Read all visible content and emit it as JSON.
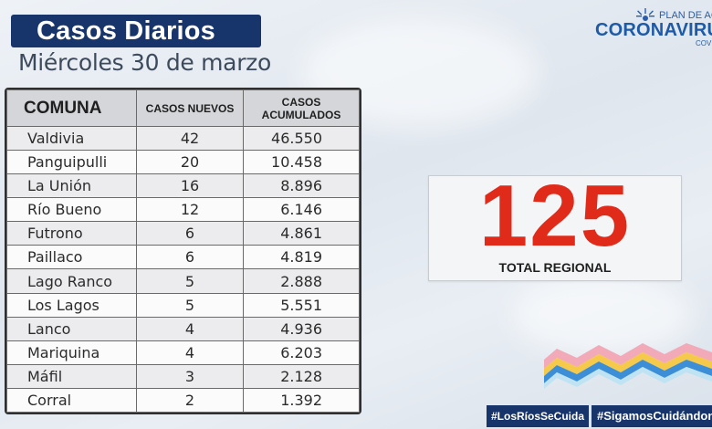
{
  "header": {
    "title": "Casos Diarios",
    "date": "Miércoles 30 de marzo"
  },
  "logo": {
    "plan": "PLAN DE ACC",
    "name": "CORONAVIRU",
    "sub": "COVI",
    "icon": "star-logo-icon"
  },
  "table": {
    "headers": {
      "comuna": "COMUNA",
      "nuevos": "CASOS NUEVOS",
      "acumulados_line1": "CASOS",
      "acumulados_line2": "ACUMULADOS"
    },
    "rows": [
      {
        "comuna": "Valdivia",
        "nuevos": "42",
        "acumulados": "46.550"
      },
      {
        "comuna": "Panguipulli",
        "nuevos": "20",
        "acumulados": "10.458"
      },
      {
        "comuna": "La Unión",
        "nuevos": "16",
        "acumulados": "8.896"
      },
      {
        "comuna": "Río Bueno",
        "nuevos": "12",
        "acumulados": "6.146"
      },
      {
        "comuna": "Futrono",
        "nuevos": "6",
        "acumulados": "4.861"
      },
      {
        "comuna": "Paillaco",
        "nuevos": "6",
        "acumulados": "4.819"
      },
      {
        "comuna": "Lago Ranco",
        "nuevos": "5",
        "acumulados": "2.888"
      },
      {
        "comuna": "Los Lagos",
        "nuevos": "5",
        "acumulados": "5.551"
      },
      {
        "comuna": "Lanco",
        "nuevos": "4",
        "acumulados": "4.936"
      },
      {
        "comuna": "Mariquina",
        "nuevos": "4",
        "acumulados": "6.203"
      },
      {
        "comuna": "Máfil",
        "nuevos": "3",
        "acumulados": "2.128"
      },
      {
        "comuna": "Corral",
        "nuevos": "2",
        "acumulados": "1.392"
      }
    ]
  },
  "total": {
    "value": "125",
    "label": "TOTAL REGIONAL"
  },
  "hashtags": {
    "first": "#LosRíosSeCuida",
    "second": "#SigamosCuidándonos"
  },
  "colors": {
    "navy": "#17356b",
    "accent_red": "#e02b1a",
    "wave_pink": "#f2a9b8",
    "wave_yellow": "#f5c94a",
    "wave_blue": "#3c8fd6",
    "wave_light": "#bfe3f2"
  }
}
